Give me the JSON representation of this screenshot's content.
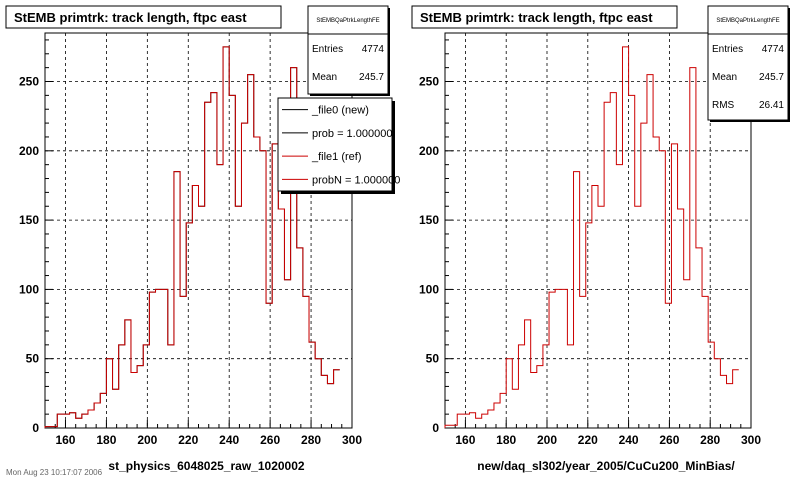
{
  "footer": "Mon Aug 23 10:17:07 2006",
  "chart_data": [
    {
      "type": "bar",
      "title": "StEMB primtrk: track length, ftpc east",
      "xlabel": "st_physics_6048025_raw_1020002",
      "ylabel": "",
      "xlim": [
        150,
        300
      ],
      "ylim": [
        0,
        285
      ],
      "xticks": [
        160,
        180,
        200,
        220,
        240,
        260,
        280,
        300
      ],
      "yticks": [
        0,
        50,
        100,
        150,
        200,
        250
      ],
      "grid": true,
      "bin_width": 3,
      "x_start": 150,
      "stats": {
        "name": "StEMBQaPtrkLengthFE",
        "rows": [
          {
            "label": "Entries",
            "value": "4774"
          },
          {
            "label": "Mean",
            "value": "245.7"
          }
        ]
      },
      "legend": {
        "placement": "top-right",
        "entries": [
          "_file0 (new)",
          "prob = 1.000000",
          "_file1 (ref)",
          "probN = 1.000000"
        ],
        "colors": [
          "#000000",
          "#000000",
          "#cc0000",
          "#cc0000"
        ]
      },
      "series": [
        {
          "name": "_file0 (new)",
          "color": "#000000",
          "values": [
            1,
            1,
            10,
            10,
            11,
            7,
            10,
            13,
            18,
            25,
            50,
            28,
            60,
            78,
            40,
            45,
            60,
            98,
            100,
            100,
            60,
            185,
            95,
            148,
            175,
            160,
            235,
            242,
            190,
            275,
            240,
            160,
            220,
            255,
            210,
            200,
            90,
            205,
            158,
            107,
            260,
            130,
            95,
            62,
            50,
            38,
            32,
            42
          ]
        },
        {
          "name": "_file1 (ref)",
          "color": "#cc0000",
          "values": [
            1,
            1,
            10,
            10,
            11,
            7,
            10,
            13,
            18,
            25,
            50,
            28,
            60,
            78,
            40,
            45,
            60,
            98,
            100,
            100,
            60,
            185,
            95,
            148,
            175,
            160,
            235,
            242,
            190,
            275,
            240,
            160,
            220,
            255,
            210,
            200,
            90,
            205,
            158,
            107,
            260,
            130,
            95,
            62,
            50,
            38,
            32,
            42
          ]
        }
      ]
    },
    {
      "type": "bar",
      "title": "StEMB primtrk: track length, ftpc east",
      "xlabel": "new/daq_sl302/year_2005/CuCu200_MinBias/",
      "ylabel": "",
      "xlim": [
        150,
        300
      ],
      "ylim": [
        0,
        285
      ],
      "xticks": [
        160,
        180,
        200,
        220,
        240,
        260,
        280,
        300
      ],
      "yticks": [
        0,
        50,
        100,
        150,
        200,
        250
      ],
      "grid": true,
      "bin_width": 3,
      "x_start": 150,
      "stats": {
        "name": "StEMBQaPtrkLengthFE",
        "rows": [
          {
            "label": "Entries",
            "value": "4774"
          },
          {
            "label": "Mean",
            "value": "245.7"
          },
          {
            "label": "RMS",
            "value": "26.41"
          }
        ]
      },
      "series": [
        {
          "name": "",
          "color": "#cc0000",
          "values": [
            2,
            2,
            10,
            10,
            11,
            7,
            10,
            13,
            18,
            25,
            50,
            28,
            60,
            78,
            40,
            45,
            60,
            98,
            100,
            100,
            60,
            185,
            95,
            148,
            175,
            160,
            235,
            242,
            190,
            275,
            240,
            160,
            220,
            255,
            210,
            200,
            90,
            205,
            158,
            107,
            260,
            130,
            95,
            62,
            50,
            38,
            32,
            42
          ]
        }
      ]
    }
  ]
}
